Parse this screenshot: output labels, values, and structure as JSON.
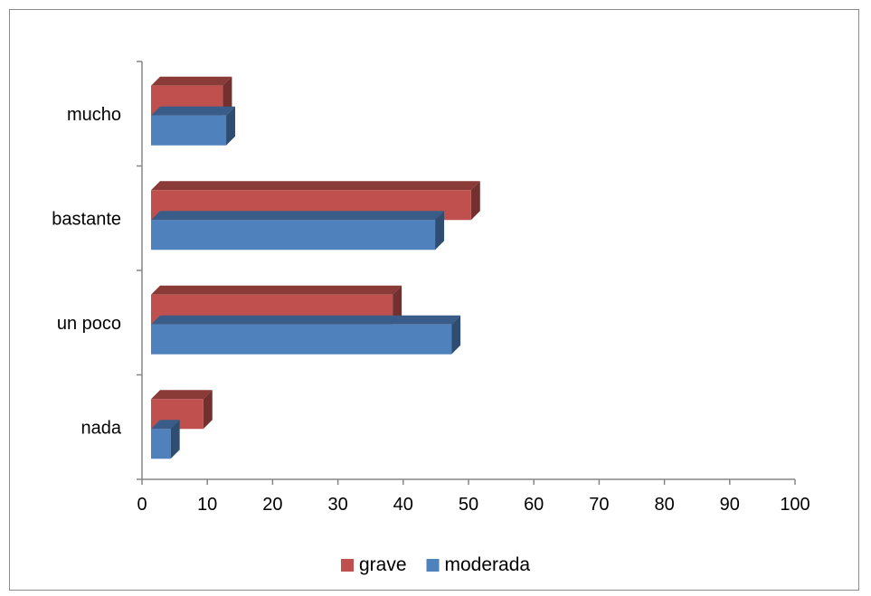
{
  "chart_data": {
    "type": "bar",
    "orientation": "horizontal",
    "style": "3d",
    "categories": [
      "nada",
      "un poco",
      "bastante",
      "mucho"
    ],
    "series": [
      {
        "name": "grave",
        "values": [
          8,
          37,
          49,
          11
        ],
        "color": "#c0504d"
      },
      {
        "name": "moderada",
        "values": [
          3,
          46,
          43.5,
          11.5
        ],
        "color": "#4f81bd"
      }
    ],
    "xlim": [
      0,
      100
    ],
    "xticks": [
      "0",
      "10",
      "20",
      "30",
      "40",
      "50",
      "60",
      "70",
      "80",
      "90",
      "100"
    ],
    "grid": false,
    "legend_position": "bottom"
  }
}
